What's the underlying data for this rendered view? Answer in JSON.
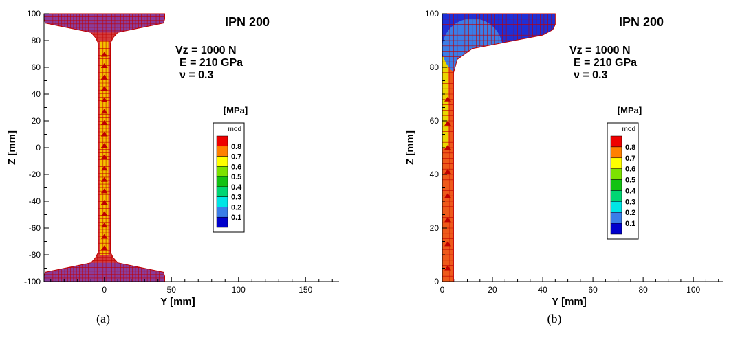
{
  "colors": {
    "mesh": "#c00000",
    "bands": [
      "#0000cc",
      "#3a7de8",
      "#00e5e5",
      "#00d673",
      "#13c213",
      "#7ce200",
      "#ffff00",
      "#ff8000",
      "#ee0000"
    ]
  },
  "chart_data": [
    {
      "type": "contour",
      "caption": "(a)",
      "title": "IPN 200",
      "annotation": [
        "Vz = 1000 N",
        "E = 210 GPa",
        "ν = 0.3"
      ],
      "xlabel": "Y [mm]",
      "ylabel": "Z [mm]",
      "xlim": [
        -45,
        175
      ],
      "ylim": [
        -100,
        100
      ],
      "x_ticks": [
        0,
        50,
        100,
        150
      ],
      "y_ticks": [
        -100,
        -80,
        -60,
        -40,
        -20,
        0,
        20,
        40,
        60,
        80,
        100
      ],
      "section": "full",
      "legend": {
        "unit": "[MPa]",
        "variable": "mod",
        "levels": [
          0.1,
          0.2,
          0.3,
          0.4,
          0.5,
          0.6,
          0.7,
          0.8
        ]
      }
    },
    {
      "type": "contour",
      "caption": "(b)",
      "title": "IPN 200",
      "annotation": [
        "Vz = 1000 N",
        "E = 210 GPa",
        "ν = 0.3"
      ],
      "xlabel": "Y [mm]",
      "ylabel": "Z [mm]",
      "xlim": [
        0,
        112
      ],
      "ylim": [
        0,
        100
      ],
      "x_ticks": [
        0,
        20,
        40,
        60,
        80,
        100
      ],
      "y_ticks": [
        0,
        20,
        40,
        60,
        80,
        100
      ],
      "section": "quarter",
      "legend": {
        "unit": "[MPa]",
        "variable": "mod",
        "levels": [
          0.1,
          0.2,
          0.3,
          0.4,
          0.5,
          0.6,
          0.7,
          0.8
        ]
      }
    }
  ]
}
